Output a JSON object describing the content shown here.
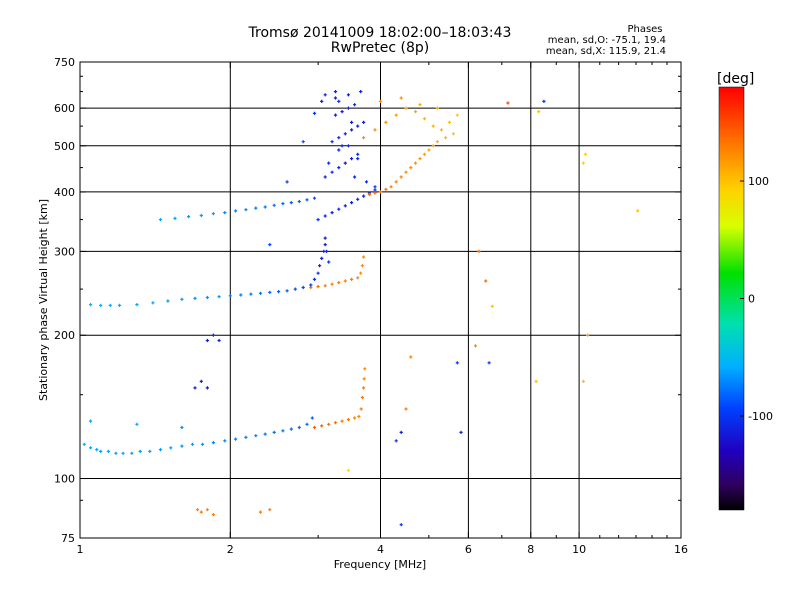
{
  "chart_data": {
    "type": "scatter",
    "title": "Tromsø 20141009 18:02:00–18:03:43",
    "subtitle": "RwPretec (8p)",
    "xlabel": "Frequency [MHz]",
    "ylabel": "Stationary phase Virtual Height [km]",
    "x_scale": "log",
    "y_scale": "log",
    "xlim": [
      1,
      16
    ],
    "ylim": [
      75,
      750
    ],
    "x_ticks": [
      "1",
      "2",
      "4",
      "6",
      "8",
      "10",
      "16"
    ],
    "x_tick_values": [
      1,
      2,
      4,
      6,
      8,
      10,
      16
    ],
    "y_ticks": [
      "750",
      "600",
      "500",
      "400",
      "300",
      "200",
      "100",
      "75"
    ],
    "y_tick_values": [
      750,
      600,
      500,
      400,
      300,
      200,
      100,
      75
    ],
    "grid_x": [
      2,
      4,
      6,
      8,
      10
    ],
    "grid_y": [
      600,
      500,
      400,
      300,
      200,
      100
    ],
    "colorbar": {
      "label": "[deg]",
      "range": [
        -180,
        180
      ],
      "ticks": [
        "100",
        "0",
        "-100"
      ],
      "tick_values": [
        100,
        0,
        -100
      ]
    },
    "annotations": {
      "header": "Phases",
      "line_o": "mean, sd,O: -75.1, 19.4",
      "line_x": "mean, sd,X: 115.9, 21.4"
    },
    "series": [
      {
        "trace": "e-layer-o-mode",
        "x": [
          1.02,
          1.05,
          1.08,
          1.1,
          1.14,
          1.18,
          1.22,
          1.27,
          1.32,
          1.38,
          1.45,
          1.52,
          1.6,
          1.68,
          1.76,
          1.85,
          1.95,
          2.05,
          2.15,
          2.25,
          2.35,
          2.45,
          2.55,
          2.65,
          2.75,
          2.85,
          2.92
        ],
        "y": [
          118,
          116,
          115,
          114,
          114,
          113,
          113,
          113,
          114,
          114,
          115,
          116,
          117,
          118,
          118,
          119,
          120,
          121,
          122,
          123,
          124,
          125,
          126,
          127,
          128,
          130,
          134
        ],
        "phase": [
          -60,
          -62,
          -60,
          -62,
          -60,
          -64,
          -62,
          -62,
          -64,
          -62,
          -62,
          -64,
          -66,
          -66,
          -68,
          -70,
          -72,
          -72,
          -72,
          -74,
          -76,
          -76,
          -78,
          -78,
          -80,
          -82,
          -82
        ]
      },
      {
        "trace": "e-layer-x-mode",
        "x": [
          2.95,
          3.05,
          3.15,
          3.25,
          3.35,
          3.45,
          3.55,
          3.62,
          3.66,
          3.68,
          3.7,
          3.71,
          3.72
        ],
        "y": [
          128,
          129,
          130,
          131,
          132,
          133,
          134,
          135,
          140,
          148,
          155,
          162,
          170
        ],
        "phase": [
          140,
          140,
          135,
          135,
          130,
          130,
          125,
          125,
          130,
          130,
          128,
          126,
          125
        ]
      },
      {
        "trace": "f1-layer-o-mode",
        "x": [
          1.05,
          1.1,
          1.15,
          1.2,
          1.3,
          1.4,
          1.5,
          1.6,
          1.7,
          1.8,
          1.9,
          2.0,
          2.1,
          2.2,
          2.3,
          2.4,
          2.5,
          2.6,
          2.7,
          2.8
        ],
        "y": [
          232,
          231,
          231,
          231,
          232,
          234,
          236,
          238,
          239,
          240,
          241,
          242,
          243,
          244,
          245,
          246,
          247,
          248,
          250,
          252
        ],
        "phase": [
          -55,
          -55,
          -58,
          -58,
          -60,
          -62,
          -64,
          -66,
          -66,
          -66,
          -68,
          -72,
          -72,
          -74,
          -78,
          -80,
          -82,
          -86,
          -88,
          -92
        ]
      },
      {
        "trace": "f1-layer-x-mode",
        "x": [
          2.9,
          3.0,
          3.1,
          3.2,
          3.3,
          3.4,
          3.5,
          3.6,
          3.65,
          3.68,
          3.7
        ],
        "y": [
          252,
          253,
          254,
          256,
          258,
          260,
          262,
          264,
          270,
          280,
          292
        ],
        "phase": [
          135,
          135,
          132,
          130,
          130,
          128,
          128,
          126,
          125,
          125,
          122
        ]
      },
      {
        "trace": "spread-f-cusp",
        "x": [
          2.9,
          2.95,
          3.0,
          3.02,
          3.05,
          3.08,
          3.1,
          3.1,
          3.12,
          3.15
        ],
        "y": [
          255,
          262,
          270,
          280,
          290,
          300,
          310,
          320,
          300,
          285
        ],
        "phase": [
          -95,
          -100,
          -105,
          -110,
          -110,
          -108,
          -112,
          -115,
          -108,
          -102
        ]
      },
      {
        "trace": "f2-layer-o-mode",
        "x": [
          1.45,
          1.55,
          1.65,
          1.75,
          1.85,
          1.95,
          2.05,
          2.15,
          2.25,
          2.35,
          2.45,
          2.55,
          2.65,
          2.75,
          2.85,
          2.95
        ],
        "y": [
          350,
          352,
          355,
          357,
          360,
          362,
          365,
          367,
          370,
          372,
          375,
          378,
          380,
          382,
          385,
          388
        ],
        "phase": [
          -60,
          -62,
          -64,
          -64,
          -66,
          -70,
          -72,
          -72,
          -74,
          -76,
          -78,
          -80,
          -82,
          -84,
          -86,
          -90
        ]
      },
      {
        "trace": "f2-spread-o-mode",
        "x": [
          3.0,
          3.1,
          3.2,
          3.3,
          3.4,
          3.5,
          3.6,
          3.7,
          3.8,
          3.9,
          3.1,
          3.2,
          3.3,
          3.4,
          3.5,
          3.6,
          3.2,
          3.3,
          3.4,
          3.5,
          3.6,
          3.7,
          3.25,
          3.35,
          3.45,
          3.55,
          3.15,
          3.3,
          3.45,
          3.6,
          3.75,
          3.9,
          3.05,
          3.25,
          3.45,
          3.65,
          3.35,
          3.5,
          3.55
        ],
        "y": [
          350,
          356,
          362,
          368,
          374,
          380,
          386,
          392,
          398,
          404,
          430,
          440,
          450,
          460,
          470,
          480,
          510,
          520,
          530,
          540,
          550,
          560,
          580,
          590,
          600,
          610,
          460,
          490,
          500,
          470,
          420,
          410,
          620,
          630,
          640,
          650,
          500,
          560,
          430
        ],
        "phase": [
          -100,
          -105,
          -110,
          -112,
          -115,
          -112,
          -110,
          -108,
          -105,
          -100,
          -108,
          -110,
          -112,
          -115,
          -112,
          -110,
          -110,
          -112,
          -115,
          -112,
          -110,
          -108,
          -112,
          -115,
          -112,
          -110,
          -105,
          -108,
          -110,
          -108,
          -104,
          -100,
          -112,
          -114,
          -116,
          -112,
          -114,
          -112,
          -108
        ]
      },
      {
        "trace": "f2-spread-x-mode",
        "x": [
          3.8,
          3.9,
          4.0,
          4.1,
          4.2,
          4.3,
          4.4,
          4.5,
          4.6,
          4.7,
          4.8,
          4.9,
          5.0,
          5.1,
          5.2,
          5.4,
          5.6,
          3.7,
          3.9,
          4.1,
          4.3,
          4.5,
          4.7,
          4.9,
          5.1,
          5.3,
          5.5,
          5.7,
          4.0,
          4.4,
          4.8,
          5.2
        ],
        "y": [
          395,
          398,
          400,
          405,
          410,
          420,
          430,
          440,
          450,
          460,
          470,
          480,
          490,
          500,
          510,
          520,
          530,
          520,
          540,
          560,
          580,
          600,
          590,
          570,
          550,
          540,
          560,
          580,
          620,
          630,
          610,
          600
        ],
        "phase": [
          135,
          135,
          130,
          130,
          128,
          126,
          125,
          125,
          124,
          120,
          118,
          116,
          112,
          110,
          108,
          105,
          100,
          125,
          120,
          118,
          116,
          112,
          110,
          108,
          106,
          104,
          100,
          96,
          125,
          120,
          112,
          108
        ]
      },
      {
        "trace": "scattered-isolated",
        "x": [
          1.72,
          1.75,
          1.8,
          1.85,
          2.3,
          2.4,
          1.8,
          1.85,
          1.9,
          1.7,
          1.75,
          1.8,
          4.4,
          4.5,
          4.6,
          5.8,
          6.3,
          6.5,
          6.7,
          7.2,
          8.3,
          8.5,
          10.2,
          10.4,
          10.3,
          10.2,
          4.3,
          4.4,
          8.2,
          13.1,
          1.05,
          1.3,
          1.6,
          2.4,
          2.6,
          2.8,
          2.95,
          3.1,
          3.25,
          3.3,
          6.2,
          6.6,
          5.7,
          3.45
        ],
        "y": [
          86,
          85,
          86,
          84,
          85,
          86,
          195,
          200,
          195,
          155,
          160,
          155,
          125,
          140,
          180,
          125,
          300,
          260,
          230,
          615,
          590,
          620,
          160,
          200,
          480,
          460,
          120,
          80,
          160,
          365,
          132,
          130,
          128,
          310,
          420,
          510,
          585,
          640,
          650,
          620,
          190,
          175,
          175,
          104
        ],
        "phase": [
          128,
          130,
          125,
          128,
          130,
          128,
          -110,
          -112,
          -110,
          -112,
          -110,
          -114,
          -110,
          130,
          125,
          -110,
          135,
          135,
          100,
          150,
          100,
          -100,
          100,
          110,
          95,
          90,
          -100,
          -100,
          100,
          100,
          -60,
          -60,
          -70,
          -90,
          -90,
          -90,
          -100,
          -110,
          -110,
          -105,
          125,
          -100,
          -100,
          80
        ]
      }
    ]
  }
}
